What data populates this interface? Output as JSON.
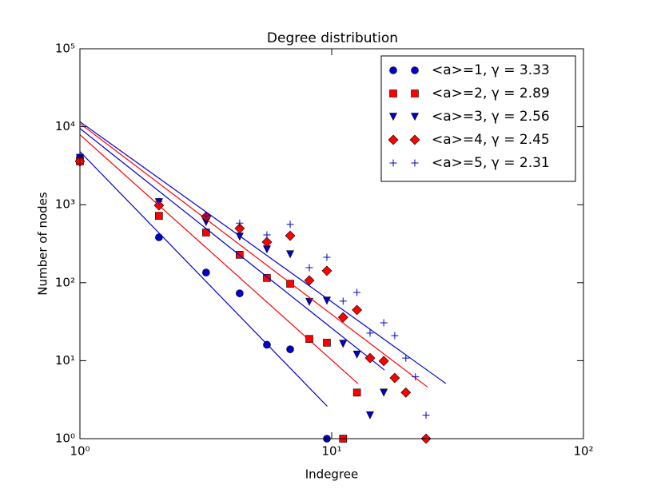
{
  "chart_data": {
    "type": "scatter",
    "title": "Degree distribution",
    "x_label": "Indegree",
    "y_label": "Number of nodes",
    "log_x": true,
    "log_y": true,
    "legend": "upper right",
    "xlim": [
      1,
      100
    ],
    "ylim": [
      1,
      100000
    ],
    "xticks": [
      {
        "value": 1,
        "label": "10⁰"
      },
      {
        "value": 10,
        "label": "10¹"
      },
      {
        "value": 100,
        "label": "10²"
      }
    ],
    "yticks": [
      {
        "value": 1,
        "label": "10⁰"
      },
      {
        "value": 10,
        "label": "10¹"
      },
      {
        "value": 100,
        "label": "10²"
      },
      {
        "value": 1000,
        "label": "10³"
      },
      {
        "value": 10000,
        "label": "10⁴"
      },
      {
        "value": 100000,
        "label": "10⁵"
      }
    ],
    "series": [
      {
        "name": "<a>=1, γ = 3.33",
        "color": "#0000cc",
        "marker": "circle",
        "x": [
          1,
          2.06,
          3.17,
          4.31,
          5.53,
          6.84,
          9.57
        ],
        "values": [
          3980,
          382,
          135,
          73,
          16,
          14,
          1
        ],
        "fit_x": [
          1,
          9.6
        ],
        "fit_values": [
          4800,
          2.6
        ]
      },
      {
        "name": "<a>=2, γ = 2.89",
        "color": "#ff0000",
        "marker": "square",
        "x": [
          1,
          2.06,
          3.17,
          4.31,
          5.53,
          6.84,
          8.15,
          9.57,
          11.1,
          12.6
        ],
        "values": [
          3600,
          720,
          440,
          228,
          115,
          97,
          19,
          17,
          1,
          3.9
        ],
        "fit_x": [
          1,
          12.7
        ],
        "fit_values": [
          7900,
          5.1
        ]
      },
      {
        "name": "<a>=3, γ = 2.56",
        "color": "#0000cc",
        "marker": "triangle",
        "x": [
          1,
          2.06,
          3.17,
          4.31,
          5.53,
          6.84,
          8.15,
          9.57,
          11.1,
          12.6,
          14.2,
          16.1
        ],
        "values": [
          4000,
          1080,
          600,
          390,
          268,
          232,
          57,
          59,
          16.5,
          12,
          2,
          3.9
        ],
        "fit_x": [
          1,
          16.2
        ],
        "fit_values": [
          9500,
          7.6
        ]
      },
      {
        "name": "<a>=4, γ = 2.45",
        "color": "#ff0000",
        "marker": "diamond",
        "x": [
          1,
          2.06,
          3.17,
          4.31,
          5.53,
          6.84,
          8.15,
          9.57,
          11.1,
          12.6,
          14.2,
          16.1,
          17.8,
          19.7,
          23.7
        ],
        "values": [
          3600,
          980,
          705,
          496,
          332,
          400,
          107,
          142,
          36,
          44.7,
          10.8,
          9.9,
          6,
          3.9,
          1
        ],
        "fit_x": [
          1,
          24
        ],
        "fit_values": [
          11000,
          4.6
        ]
      },
      {
        "name": "<a>=5, γ = 2.31",
        "color": "#0000cc",
        "marker": "plus",
        "x": [
          1,
          2.06,
          3.17,
          4.31,
          5.53,
          6.84,
          8.15,
          9.57,
          11.1,
          12.6,
          14.2,
          16.1,
          17.8,
          19.7,
          21.5,
          23.7
        ],
        "values": [
          4260,
          1100,
          720,
          580,
          410,
          560,
          156,
          212,
          58,
          75,
          22.6,
          30.6,
          21,
          10.8,
          6.2,
          2
        ],
        "fit_x": [
          1,
          28.4
        ],
        "fit_values": [
          11600,
          5.1
        ]
      }
    ]
  }
}
